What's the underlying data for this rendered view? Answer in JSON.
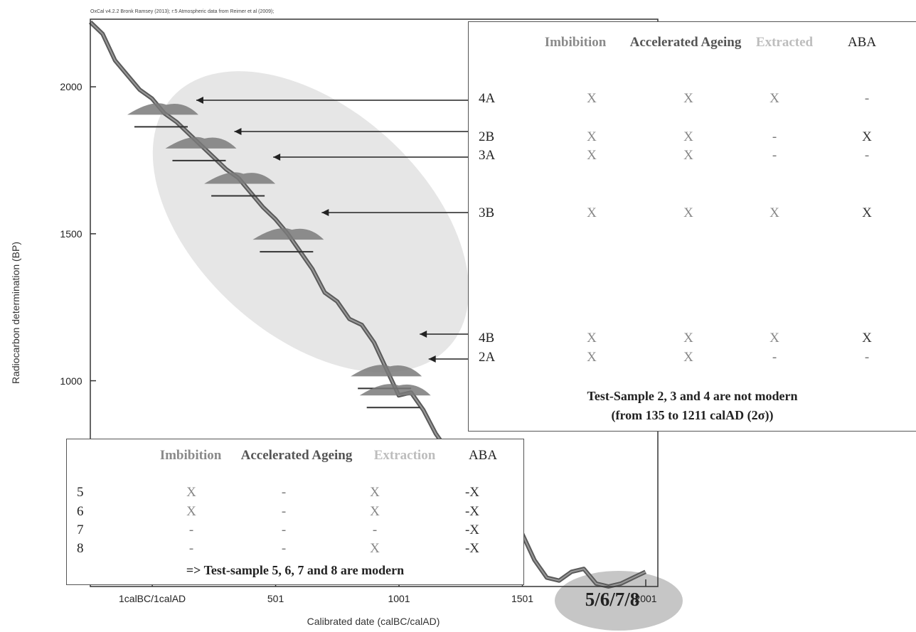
{
  "chart_data": {
    "type": "line",
    "credit": "OxCal v4.2.2 Bronk Ramsey (2013); r:5 Atmospheric data from Reimer et al (2009);",
    "xlabel": "Calibrated date (calBC/calAD)",
    "ylabel": "Radiocarbon determination (BP)",
    "x_tick_labels": [
      "1calBC/1calAD",
      "501",
      "1001",
      "1501",
      "2001"
    ],
    "x_ticks": [
      1,
      501,
      1001,
      1501,
      2001
    ],
    "y_ticks": [
      1000,
      1500,
      2000
    ],
    "xlim": [
      -250,
      2050
    ],
    "ylim": [
      300,
      2230
    ],
    "series": [
      {
        "x": [
          -250,
          -200,
          -150,
          -100,
          -50,
          0,
          50,
          100,
          150,
          200,
          250,
          300,
          350,
          400,
          450,
          500,
          550,
          600,
          650,
          700,
          750,
          800,
          850,
          900,
          950,
          1000,
          1050,
          1100,
          1150,
          1200,
          1250,
          1300,
          1350,
          1400,
          1450,
          1500,
          1550,
          1600,
          1650,
          1700,
          1750,
          1800,
          1850,
          1900,
          1950,
          2000
        ],
        "y": [
          2220,
          2180,
          2090,
          2040,
          1990,
          1960,
          1910,
          1880,
          1840,
          1800,
          1760,
          1720,
          1690,
          1640,
          1590,
          1550,
          1500,
          1440,
          1380,
          1300,
          1270,
          1210,
          1190,
          1130,
          1040,
          950,
          960,
          900,
          820,
          760,
          700,
          680,
          650,
          620,
          520,
          480,
          390,
          330,
          320,
          350,
          360,
          310,
          300,
          310,
          330,
          350
        ]
      }
    ],
    "calibrated_samples": [
      {
        "label": "4A",
        "bp": 1905
      },
      {
        "label": "2B",
        "bp": 1790
      },
      {
        "label": "3A",
        "bp": 1670
      },
      {
        "label": "3B",
        "bp": 1480
      },
      {
        "label": "4B",
        "bp": 1015
      },
      {
        "label": "2A",
        "bp": 950
      },
      {
        "label": "5/6/7/8",
        "bp": 320
      }
    ],
    "group_label": "5/6/7/8"
  },
  "table_top": {
    "headers": [
      "Imbibition",
      "Accelerated Ageing",
      "Extracted",
      "ABA"
    ],
    "header_colors": [
      "#8a8a8a",
      "#555555",
      "#bdbdbd",
      "#222222"
    ],
    "rows": [
      {
        "label": "4A",
        "cells": [
          "X",
          "X",
          "X",
          "-"
        ]
      },
      {
        "label": "2B",
        "cells": [
          "X",
          "X",
          "-",
          "X"
        ]
      },
      {
        "label": "3A",
        "cells": [
          "X",
          "X",
          "-",
          "-"
        ]
      },
      {
        "label": "3B",
        "cells": [
          "X",
          "X",
          "X",
          "X"
        ]
      },
      {
        "label": "4B",
        "cells": [
          "X",
          "X",
          "X",
          "X"
        ]
      },
      {
        "label": "2A",
        "cells": [
          "X",
          "X",
          "-",
          "-"
        ]
      }
    ],
    "conclusion_line1": "Test-Sample 2, 3 and 4 are not modern",
    "conclusion_line2": "(from 135 to 1211 calAD (2σ))"
  },
  "table_bottom": {
    "headers": [
      "Imbibition",
      "Accelerated Ageing",
      "Extraction",
      "ABA"
    ],
    "header_colors": [
      "#8a8a8a",
      "#555555",
      "#bdbdbd",
      "#222222"
    ],
    "rows": [
      {
        "label": "5",
        "cells": [
          "X",
          "-",
          "X",
          "-X"
        ]
      },
      {
        "label": "6",
        "cells": [
          "X",
          "-",
          "X",
          "-X"
        ]
      },
      {
        "label": "7",
        "cells": [
          "-",
          "-",
          "-",
          "-X"
        ]
      },
      {
        "label": "8",
        "cells": [
          "-",
          "-",
          "X",
          "-X"
        ]
      }
    ],
    "conclusion": "=> Test-sample 5, 6, 7 and 8 are modern"
  },
  "colors": {
    "curve": "#5a5a5a",
    "ellipse": "#e6e6e6",
    "distribution": "#7a7a7a",
    "badge": "#c6c6c6"
  }
}
